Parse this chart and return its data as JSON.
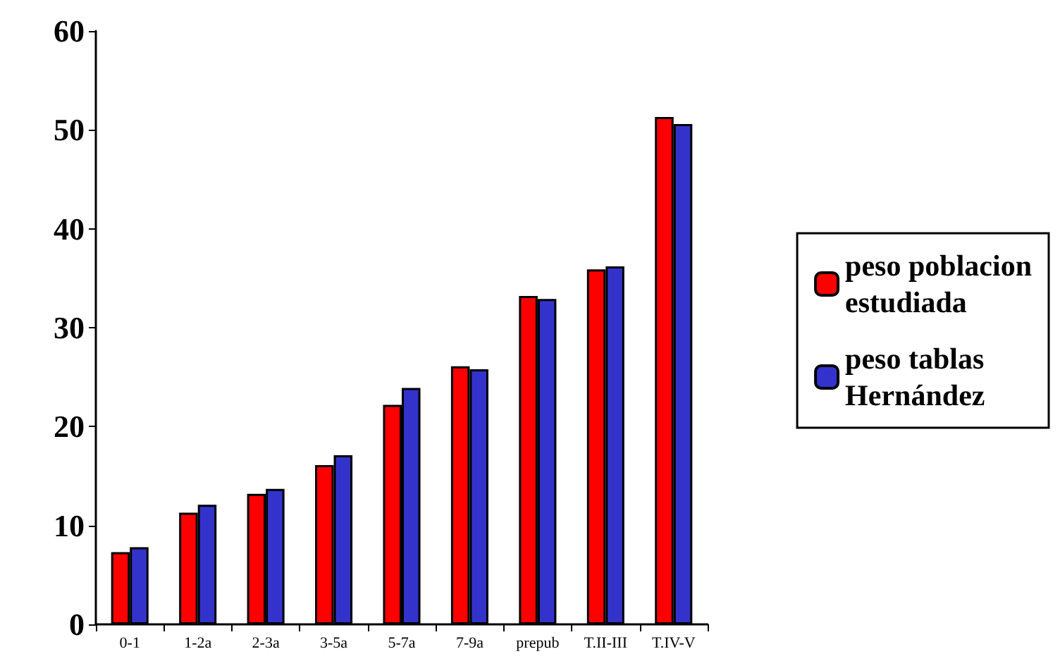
{
  "chart_data": {
    "type": "bar",
    "categories": [
      "0-1",
      "1-2a",
      "2-3a",
      "3-5a",
      "5-7a",
      "7-9a",
      "prepub",
      "T.II-III",
      "T.IV-V"
    ],
    "series": [
      {
        "name": "peso poblacion estudiada",
        "color": "#ff0000",
        "values": [
          7.3,
          11.3,
          13.2,
          16.1,
          22.2,
          26.1,
          33.2,
          35.9,
          51.3
        ]
      },
      {
        "name": "peso tablas Hernández",
        "color": "#3333cc",
        "values": [
          7.8,
          12.1,
          13.7,
          17.1,
          23.9,
          25.8,
          32.9,
          36.2,
          50.6
        ]
      }
    ],
    "ylim": [
      0,
      60
    ],
    "yticks": [
      0,
      10,
      20,
      30,
      40,
      50,
      60
    ],
    "grid": false,
    "legend": "right"
  }
}
